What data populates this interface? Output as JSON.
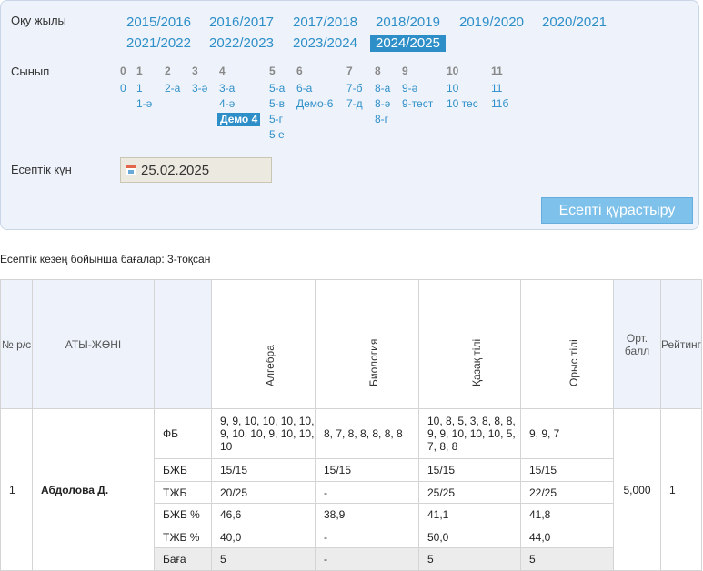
{
  "filter": {
    "year_label": "Оқу жылы",
    "years": [
      "2015/2016",
      "2016/2017",
      "2017/2018",
      "2018/2019",
      "2019/2020",
      "2020/2021",
      "2021/2022",
      "2022/2023",
      "2023/2024",
      "2024/2025"
    ],
    "selected_year": "2024/2025",
    "class_label": "Сынып",
    "class_groups": [
      {
        "head": "0",
        "items": [
          "0"
        ]
      },
      {
        "head": "1",
        "items": [
          "1",
          "1-ә"
        ]
      },
      {
        "head": "2",
        "items": [
          "2-а"
        ]
      },
      {
        "head": "3",
        "items": [
          "3-ә"
        ]
      },
      {
        "head": "4",
        "items": [
          "3-а",
          "4-ә",
          "Демо 4"
        ]
      },
      {
        "head": "5",
        "items": [
          "5-а",
          "5-в",
          "5-г",
          "5 е"
        ]
      },
      {
        "head": "6",
        "items": [
          "6-а",
          "Демо-6"
        ]
      },
      {
        "head": "7",
        "items": [
          "7-б",
          "7-д"
        ]
      },
      {
        "head": "8",
        "items": [
          "8-а",
          "8-ә",
          "8-г"
        ]
      },
      {
        "head": "9",
        "items": [
          "9-ә",
          "9-тест"
        ]
      },
      {
        "head": "10",
        "items": [
          "10",
          "10 тес"
        ]
      },
      {
        "head": "11",
        "items": [
          "11",
          "11б"
        ]
      }
    ],
    "selected_class": "Демо 4",
    "date_label": "Есептік күн",
    "date_value": "25.02.2025",
    "build_button": "Есепті құрастыру"
  },
  "report": {
    "caption": "Есептік кезең бойынша бағалар: 3-тоқсан",
    "headers": {
      "num": "№ р/с",
      "name": "АТЫ-ЖӨНІ",
      "avg": "Орт. балл",
      "rating": "Рейтинг"
    },
    "subjects": [
      "Алгебра",
      "Биология",
      "Қазақ тілі",
      "Орыс тілі"
    ],
    "students": [
      {
        "num": "1",
        "name": "Абдолова Д.",
        "avg": "5,000",
        "rating": "1",
        "rows": [
          {
            "label": "ФБ",
            "values": [
              "9, 9, 10, 10, 10, 10, 9, 10, 10, 9, 10, 10, 10",
              "8, 7, 8, 8, 8, 8, 8",
              "10, 8, 5, 3, 8, 8, 8, 9, 9, 10, 10, 10, 5, 7, 8, 8",
              "9, 9, 7"
            ]
          },
          {
            "label": "БЖБ",
            "values": [
              "15/15",
              "15/15",
              "15/15",
              "15/15"
            ]
          },
          {
            "label": "ТЖБ",
            "values": [
              "20/25",
              "-",
              "25/25",
              "22/25"
            ]
          },
          {
            "label": "БЖБ %",
            "values": [
              "46,6",
              "38,9",
              "41,1",
              "41,8"
            ]
          },
          {
            "label": "ТЖБ %",
            "values": [
              "40,0",
              "-",
              "50,0",
              "44,0"
            ]
          },
          {
            "label": "Баға",
            "values": [
              "5",
              "-",
              "5",
              "5"
            ]
          }
        ]
      }
    ]
  }
}
